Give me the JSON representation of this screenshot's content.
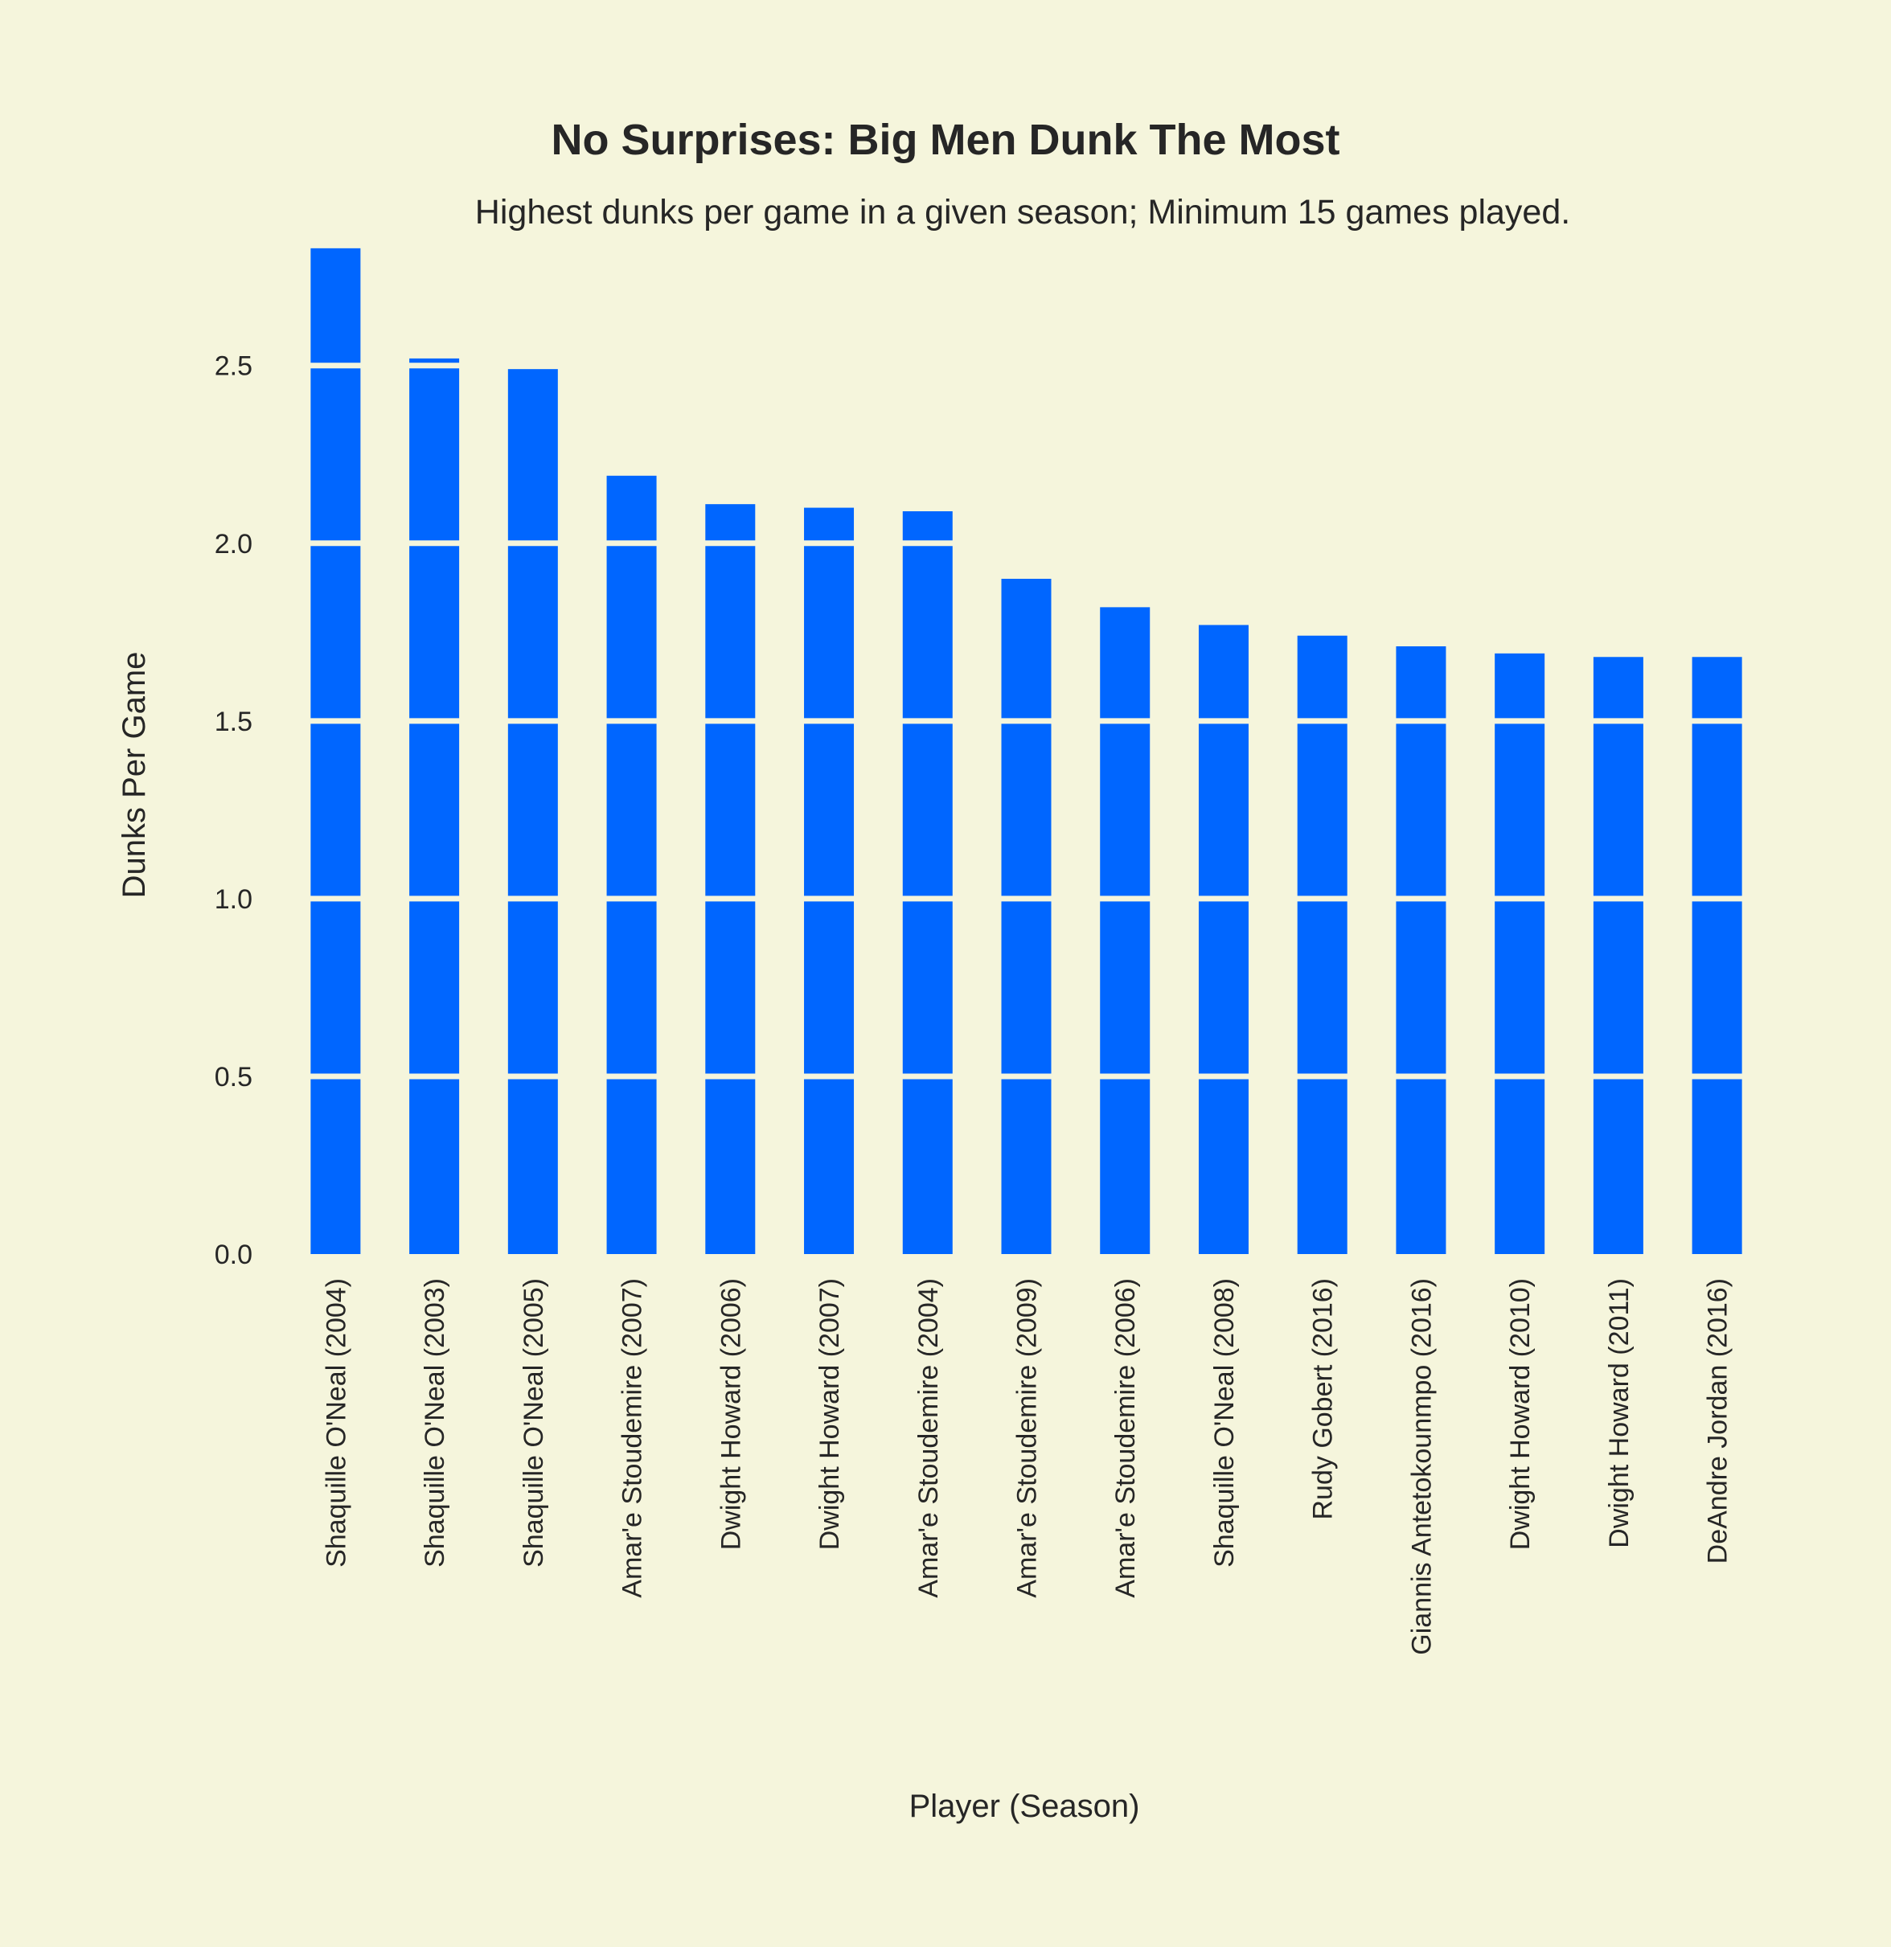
{
  "chart_data": {
    "type": "bar",
    "title": "No Surprises: Big Men Dunk The Most",
    "subtitle": "Highest dunks per game in a given season; Minimum 15 games played.",
    "xlabel": "Player (Season)",
    "ylabel": "Dunks Per Game",
    "ylim": [
      0,
      2.85
    ],
    "yticks": [
      "0.0",
      "0.5",
      "1.0",
      "1.5",
      "2.0",
      "2.5"
    ],
    "grid": true,
    "colors": {
      "background": "#f5f5dc",
      "bar": "#0066ff",
      "grid": "#f5f5dc",
      "text": "#262626"
    },
    "categories": [
      "Shaquille O'Neal (2004)",
      "Shaquille O'Neal (2003)",
      "Shaquille O'Neal (2005)",
      "Amar'e Stoudemire (2007)",
      "Dwight Howard (2006)",
      "Dwight Howard (2007)",
      "Amar'e Stoudemire (2004)",
      "Amar'e Stoudemire (2009)",
      "Amar'e Stoudemire (2006)",
      "Shaquille O'Neal (2008)",
      "Rudy Gobert (2016)",
      "Giannis Antetokounmpo (2016)",
      "Dwight Howard (2010)",
      "Dwight Howard (2011)",
      "DeAndre Jordan (2016)"
    ],
    "values": [
      2.83,
      2.52,
      2.49,
      2.19,
      2.11,
      2.1,
      2.09,
      1.9,
      1.82,
      1.77,
      1.74,
      1.71,
      1.69,
      1.68,
      1.68
    ]
  }
}
